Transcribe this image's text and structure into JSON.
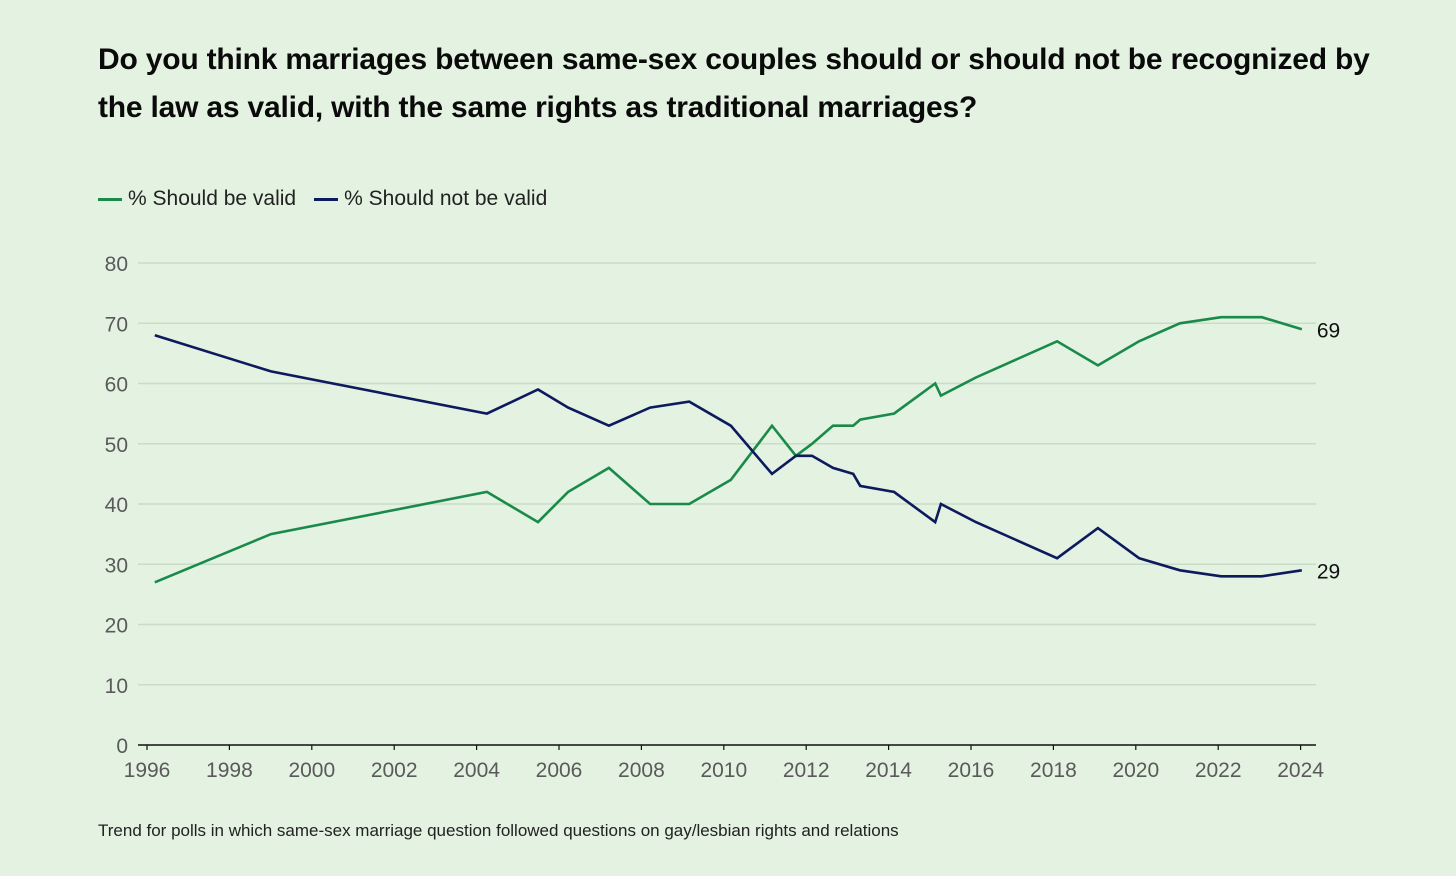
{
  "chart_data": {
    "type": "line",
    "title": "Do you think marriages between same-sex couples should or should not be recognized by the law as valid, with the same rights as traditional marriages?",
    "xlabel": "",
    "ylabel": "",
    "xlim": [
      1996,
      2024
    ],
    "ylim": [
      0,
      80
    ],
    "x_ticks": [
      1996,
      1998,
      2000,
      2002,
      2004,
      2006,
      2008,
      2010,
      2012,
      2014,
      2016,
      2018,
      2020,
      2022,
      2024
    ],
    "y_ticks": [
      0,
      10,
      20,
      30,
      40,
      50,
      60,
      70,
      80
    ],
    "grid": true,
    "legend_position": "top-left",
    "x": [
      1996.19,
      1999.01,
      2004.25,
      2005.49,
      2006.22,
      2007.21,
      2008.21,
      2009.16,
      2010.17,
      2011.17,
      2011.75,
      2012.14,
      2012.65,
      2013.14,
      2013.31,
      2014.13,
      2015.13,
      2015.27,
      2016.12,
      2018.09,
      2019.08,
      2020.08,
      2021.07,
      2022.07,
      2023.06,
      2024.03
    ],
    "series": [
      {
        "name": "% Should be valid",
        "color": "#1a8a4a",
        "end_label": "69",
        "values": [
          27,
          35,
          42,
          37,
          42,
          46,
          40,
          40,
          44,
          53,
          48,
          50,
          53,
          53,
          54,
          55,
          60,
          58,
          61,
          67,
          63,
          67,
          70,
          71,
          71,
          69
        ]
      },
      {
        "name": "% Should not be valid",
        "color": "#0d1a5e",
        "end_label": "29",
        "values": [
          68,
          62,
          55,
          59,
          56,
          53,
          56,
          57,
          53,
          45,
          48,
          48,
          46,
          45,
          43,
          42,
          37,
          40,
          37,
          31,
          36,
          31,
          29,
          28,
          28,
          29
        ]
      }
    ],
    "footnote": "Trend for polls in which same-sex marriage question followed questions on gay/lesbian rights and relations"
  }
}
